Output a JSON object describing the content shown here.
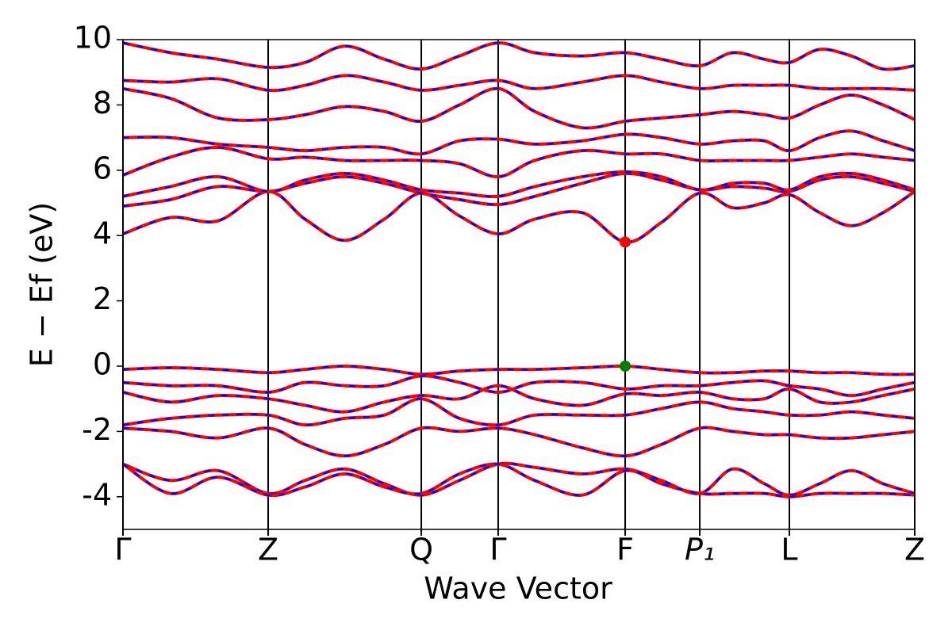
{
  "chart_data": {
    "type": "band_structure",
    "xlabel": "Wave Vector",
    "ylabel": "E − Ef (eV)",
    "xlim": [
      0,
      1
    ],
    "ylim": [
      -5,
      10
    ],
    "xticks": [
      {
        "value": 0,
        "label": "Γ"
      },
      {
        "value": 0.1834,
        "label": "Z"
      },
      {
        "value": 0.3768,
        "label": "Q"
      },
      {
        "value": 0.4739,
        "label": "Γ"
      },
      {
        "value": 0.6343,
        "label": "F"
      },
      {
        "value": 0.7285,
        "label": "P₁"
      },
      {
        "value": 0.8417,
        "label": "L"
      },
      {
        "value": 1,
        "label": "Z"
      }
    ],
    "yticks": [
      -4,
      -2,
      0,
      2,
      4,
      6,
      8,
      10
    ],
    "dash_color": "#0000ff",
    "x": [
      0,
      0.06,
      0.12,
      0.1834,
      0.23,
      0.28,
      0.33,
      0.3768,
      0.425,
      0.4739,
      0.52,
      0.58,
      0.6343,
      0.68,
      0.7285,
      0.77,
      0.81,
      0.8417,
      0.88,
      0.92,
      0.96,
      1
    ],
    "series": [
      {
        "color": "#ff0000",
        "values": [
          4.05,
          4.55,
          4.45,
          5.35,
          4.5,
          3.85,
          4.5,
          5.3,
          4.6,
          4.05,
          4.5,
          4.7,
          3.8,
          4.4,
          5.3,
          4.85,
          5.0,
          5.25,
          4.7,
          4.3,
          4.7,
          5.35
        ]
      },
      {
        "color": "#ff0000",
        "values": [
          4.9,
          5.1,
          5.5,
          5.35,
          5.6,
          5.8,
          5.6,
          5.3,
          5.1,
          4.95,
          5.2,
          5.6,
          5.9,
          5.7,
          5.4,
          5.5,
          5.45,
          5.35,
          5.7,
          5.8,
          5.6,
          5.35
        ]
      },
      {
        "color": "#ff0000",
        "values": [
          5.2,
          5.5,
          5.8,
          5.35,
          5.7,
          5.9,
          5.7,
          5.4,
          5.3,
          5.2,
          5.5,
          5.8,
          5.95,
          5.8,
          5.4,
          5.6,
          5.6,
          5.4,
          5.8,
          5.9,
          5.7,
          5.4
        ]
      },
      {
        "color": "#ff0000",
        "values": [
          5.85,
          6.4,
          6.7,
          6.35,
          6.4,
          6.3,
          6.3,
          6.3,
          6.2,
          5.8,
          6.3,
          6.6,
          6.5,
          6.5,
          6.3,
          6.3,
          6.3,
          6.3,
          6.4,
          6.5,
          6.4,
          6.3
        ]
      },
      {
        "color": "#ff0000",
        "values": [
          7.0,
          7.0,
          6.8,
          6.7,
          6.6,
          6.7,
          6.7,
          6.5,
          6.9,
          6.95,
          6.8,
          6.9,
          7.1,
          7.0,
          6.8,
          6.9,
          6.9,
          6.6,
          7.0,
          7.2,
          6.9,
          6.6
        ]
      },
      {
        "color": "#ff0000",
        "values": [
          8.5,
          8.2,
          7.6,
          7.55,
          7.7,
          7.95,
          7.8,
          7.5,
          8.0,
          8.5,
          7.8,
          7.3,
          7.5,
          7.6,
          7.7,
          7.8,
          7.7,
          7.6,
          8.0,
          8.3,
          8.0,
          7.55
        ]
      },
      {
        "color": "#ff0000",
        "values": [
          8.75,
          8.7,
          8.8,
          8.45,
          8.6,
          8.9,
          8.7,
          8.45,
          8.6,
          8.75,
          8.5,
          8.7,
          8.9,
          8.7,
          8.5,
          8.6,
          8.6,
          8.6,
          8.5,
          8.5,
          8.5,
          8.45
        ]
      },
      {
        "color": "#ff0000",
        "values": [
          9.9,
          9.6,
          9.4,
          9.15,
          9.3,
          9.8,
          9.4,
          9.1,
          9.5,
          9.9,
          9.6,
          9.5,
          9.6,
          9.4,
          9.2,
          9.6,
          9.4,
          9.3,
          9.7,
          9.5,
          9.1,
          9.2
        ]
      },
      {
        "color": "#ff0000",
        "values": [
          -0.1,
          -0.05,
          -0.1,
          -0.2,
          -0.1,
          0.0,
          -0.1,
          -0.25,
          -0.15,
          -0.1,
          -0.1,
          -0.05,
          0.0,
          -0.1,
          -0.2,
          -0.2,
          -0.15,
          -0.15,
          -0.2,
          -0.2,
          -0.25,
          -0.25
        ]
      },
      {
        "color": "#ff0000",
        "values": [
          -0.5,
          -0.6,
          -0.6,
          -0.8,
          -0.5,
          -0.6,
          -0.6,
          -0.3,
          -0.5,
          -0.8,
          -0.5,
          -0.5,
          -0.7,
          -0.6,
          -0.6,
          -0.5,
          -0.45,
          -0.6,
          -0.7,
          -0.9,
          -0.7,
          -0.5
        ]
      },
      {
        "color": "#ff0000",
        "values": [
          -0.8,
          -1.1,
          -0.9,
          -1.0,
          -1.2,
          -1.4,
          -1.1,
          -0.9,
          -1.0,
          -0.6,
          -1.0,
          -1.2,
          -0.85,
          -0.9,
          -0.8,
          -1.0,
          -1.0,
          -0.7,
          -1.1,
          -1.1,
          -0.9,
          -0.7
        ]
      },
      {
        "color": "#ff0000",
        "values": [
          -1.8,
          -1.6,
          -1.5,
          -1.5,
          -1.8,
          -1.6,
          -1.5,
          -1.0,
          -1.6,
          -1.8,
          -1.5,
          -1.5,
          -1.5,
          -1.3,
          -1.1,
          -1.3,
          -1.4,
          -1.5,
          -1.5,
          -1.4,
          -1.5,
          -1.6
        ]
      },
      {
        "color": "#ff0000",
        "values": [
          -1.9,
          -2.0,
          -2.2,
          -1.9,
          -2.4,
          -2.75,
          -2.4,
          -1.9,
          -2.0,
          -1.9,
          -2.1,
          -2.5,
          -2.75,
          -2.4,
          -1.9,
          -2.0,
          -2.1,
          -2.1,
          -2.2,
          -2.2,
          -2.1,
          -2.0
        ]
      },
      {
        "color": "#ff0000",
        "values": [
          -3.0,
          -3.5,
          -3.2,
          -3.9,
          -3.5,
          -3.15,
          -3.6,
          -3.95,
          -3.5,
          -3.0,
          -3.1,
          -3.3,
          -3.15,
          -3.5,
          -3.9,
          -3.15,
          -3.6,
          -3.95,
          -3.6,
          -3.2,
          -3.6,
          -3.9
        ]
      },
      {
        "color": "#ff0000",
        "values": [
          -3.0,
          -3.9,
          -3.4,
          -3.95,
          -3.7,
          -3.3,
          -3.7,
          -3.9,
          -3.3,
          -3.0,
          -3.5,
          -3.95,
          -3.2,
          -3.6,
          -3.9,
          -3.9,
          -3.9,
          -4.0,
          -3.9,
          -3.9,
          -3.9,
          -3.95
        ]
      }
    ],
    "points": [
      {
        "x": 0.6343,
        "y": 3.8,
        "color": "#ff0000"
      },
      {
        "x": 0.6343,
        "y": 0,
        "color": "#008000"
      }
    ]
  }
}
